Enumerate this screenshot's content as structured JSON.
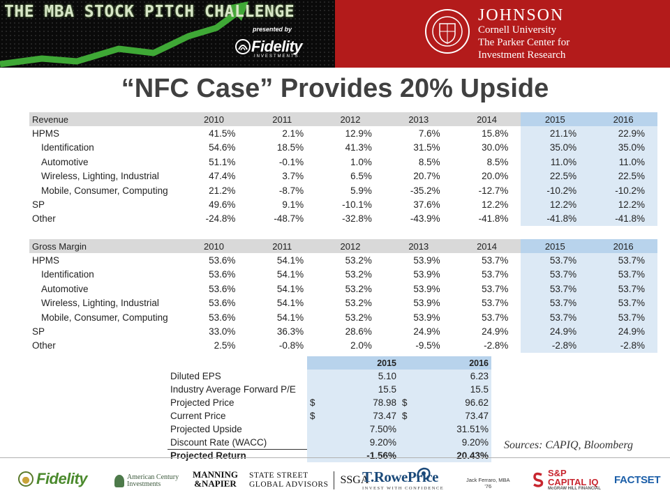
{
  "banner": {
    "title": "THE MBA STOCK PITCH CHALLENGE",
    "presented_by": "presented by",
    "sponsor_word": "Fidelity",
    "sponsor_sub": "INVESTMENTS",
    "school_line1": "JOHNSON",
    "school_line2": "Cornell University",
    "school_line3": "The Parker Center for",
    "school_line4": "Investment Research"
  },
  "slide_title": "“NFC Case” Provides 20% Upside",
  "revenue_table": {
    "header": [
      "Revenue",
      "2010",
      "2011",
      "2012",
      "2013",
      "2014",
      "2015",
      "2016"
    ],
    "rows": [
      {
        "label": "HPMS",
        "values": [
          "41.5%",
          "2.1%",
          "12.9%",
          "7.6%",
          "15.8%",
          "21.1%",
          "22.9%"
        ]
      },
      {
        "label": "Identification",
        "values": [
          "54.6%",
          "18.5%",
          "41.3%",
          "31.5%",
          "30.0%",
          "35.0%",
          "35.0%"
        ]
      },
      {
        "label": "Automotive",
        "values": [
          "51.1%",
          "-0.1%",
          "1.0%",
          "8.5%",
          "8.5%",
          "11.0%",
          "11.0%"
        ]
      },
      {
        "label": "Wireless, Lighting, Industrial",
        "values": [
          "47.4%",
          "3.7%",
          "6.5%",
          "20.7%",
          "20.0%",
          "22.5%",
          "22.5%"
        ]
      },
      {
        "label": "Mobile,  Consumer, Computing",
        "values": [
          "21.2%",
          "-8.7%",
          "5.9%",
          "-35.2%",
          "-12.7%",
          "-10.2%",
          "-10.2%"
        ]
      },
      {
        "label": "SP",
        "values": [
          "49.6%",
          "9.1%",
          "-10.1%",
          "37.6%",
          "12.2%",
          "12.2%",
          "12.2%"
        ]
      },
      {
        "label": "Other",
        "values": [
          "-24.8%",
          "-48.7%",
          "-32.8%",
          "-43.9%",
          "-41.8%",
          "-41.8%",
          "-41.8%"
        ]
      }
    ]
  },
  "margin_table": {
    "header": [
      "Gross Margin",
      "2010",
      "2011",
      "2012",
      "2013",
      "2014",
      "2015",
      "2016"
    ],
    "rows": [
      {
        "label": "HPMS",
        "values": [
          "53.6%",
          "54.1%",
          "53.2%",
          "53.9%",
          "53.7%",
          "53.7%",
          "53.7%"
        ]
      },
      {
        "label": "Identification",
        "values": [
          "53.6%",
          "54.1%",
          "53.2%",
          "53.9%",
          "53.7%",
          "53.7%",
          "53.7%"
        ]
      },
      {
        "label": "Automotive",
        "values": [
          "53.6%",
          "54.1%",
          "53.2%",
          "53.9%",
          "53.7%",
          "53.7%",
          "53.7%"
        ]
      },
      {
        "label": "Wireless, Lighting, Industrial",
        "values": [
          "53.6%",
          "54.1%",
          "53.2%",
          "53.9%",
          "53.7%",
          "53.7%",
          "53.7%"
        ]
      },
      {
        "label": "Mobile,  Consumer, Computing",
        "values": [
          "53.6%",
          "54.1%",
          "53.2%",
          "53.9%",
          "53.7%",
          "53.7%",
          "53.7%"
        ]
      },
      {
        "label": "SP",
        "values": [
          "33.0%",
          "36.3%",
          "28.6%",
          "24.9%",
          "24.9%",
          "24.9%",
          "24.9%"
        ]
      },
      {
        "label": "Other",
        "values": [
          "2.5%",
          "-0.8%",
          "2.0%",
          "-9.5%",
          "-2.8%",
          "-2.8%",
          "-2.8%"
        ]
      }
    ]
  },
  "valuation": {
    "header": [
      "",
      "2015",
      "2016"
    ],
    "rows": [
      {
        "label": "Diluted EPS",
        "v2015": "5.10",
        "v2016": "6.23",
        "cur2015": "",
        "cur2016": ""
      },
      {
        "label": "Industry Average Forward P/E",
        "v2015": "15.5",
        "v2016": "15.5",
        "cur2015": "",
        "cur2016": ""
      },
      {
        "label": "Projected Price",
        "v2015": "78.98",
        "v2016": "96.62",
        "cur2015": "$",
        "cur2016": "$"
      },
      {
        "label": "Current Price",
        "v2015": "73.47",
        "v2016": "73.47",
        "cur2015": "$",
        "cur2016": "$"
      },
      {
        "label": "Projected Upside",
        "v2015": "7.50%",
        "v2016": "31.51%",
        "cur2015": "",
        "cur2016": ""
      },
      {
        "label": "Discount Rate (WACC)",
        "v2015": "9.20%",
        "v2016": "9.20%",
        "cur2015": "",
        "cur2016": ""
      },
      {
        "label": "Projected Return",
        "v2015": "-1.56%",
        "v2016": "20.43%",
        "cur2015": "",
        "cur2016": ""
      }
    ]
  },
  "sources": "Sources: CAPIQ, Bloomberg",
  "footer": {
    "fidelity": "Fidelity",
    "american_century_1": "American Century",
    "american_century_2": "Investments",
    "manning_1": "MANNING",
    "manning_2": "&NAPIER",
    "state_street_1": "STATE STREET",
    "state_street_2": "GLOBAL ADVISORS",
    "ssga": "SSGA",
    "trowe_1": "T.RowePrice",
    "trowe_2": "INVEST WITH CONFIDENCE",
    "presenter_1": "Jack Ferraro, MBA",
    "presenter_2": "'76",
    "sp_1": "S&P",
    "sp_2": "CAPITAL IQ",
    "sp_3": "McGRAW HILL FINANCIAL",
    "factset": "FACTSET"
  },
  "colors": {
    "banner_red": "#b31b1b",
    "projection_header": "#b8d3ec",
    "projection_cell": "#dce9f5",
    "header_gray": "#d9d9d9",
    "title_gray": "#404040"
  }
}
